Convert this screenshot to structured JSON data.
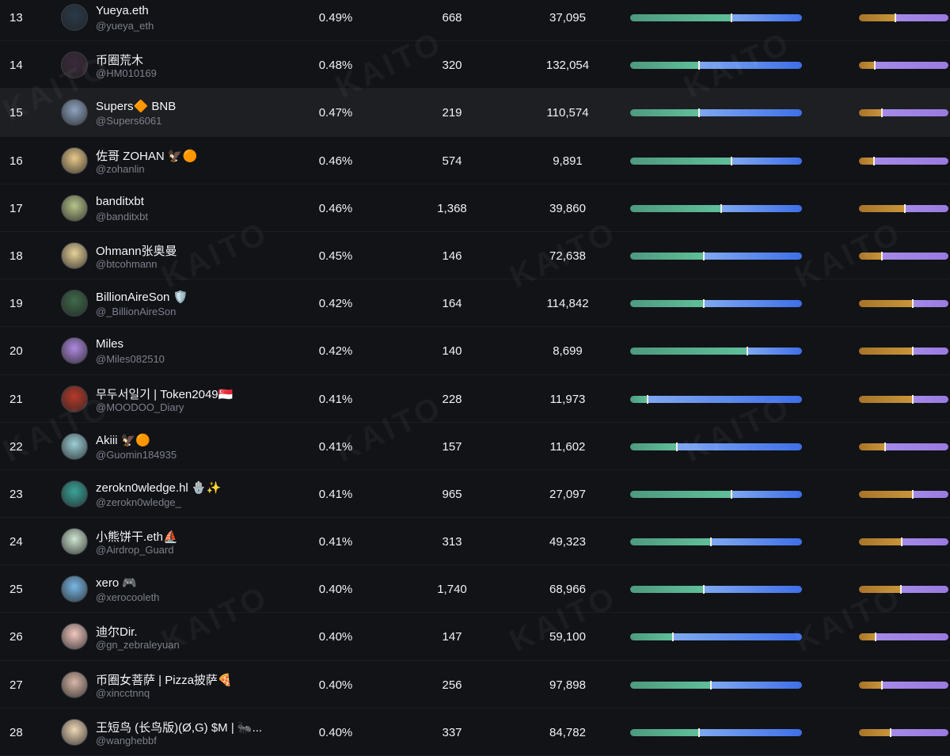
{
  "watermark": "KAITO",
  "colors": {
    "bg": "#111317",
    "highlight": "#1e1f23",
    "green": "#5fbf9a",
    "blue": "#3f6fe8",
    "gold": "#c8953a",
    "purple": "#9a7ae0"
  },
  "rows": [
    {
      "rank": "13",
      "name": "Yueya.eth",
      "handle": "@yueya_eth",
      "share": "0.49%",
      "count": "668",
      "followers": "37,095",
      "bar1": 0.59,
      "bar2": 0.41,
      "avatar": "#2a3a4a"
    },
    {
      "rank": "14",
      "name": "币圈荒木",
      "handle": "@HM010169",
      "share": "0.48%",
      "count": "320",
      "followers": "132,054",
      "bar1": 0.4,
      "bar2": 0.18,
      "avatar": "#3a2a3a"
    },
    {
      "rank": "15",
      "name": "Supers🔶 BNB",
      "handle": "@Supers6061",
      "share": "0.47%",
      "count": "219",
      "followers": "110,574",
      "bar1": 0.4,
      "bar2": 0.26,
      "avatar": "#8fa3c0",
      "highlight": true
    },
    {
      "rank": "16",
      "name": "佐哥 ZOHAN 🦅🟠",
      "handle": "@zohanlin",
      "share": "0.46%",
      "count": "574",
      "followers": "9,891",
      "bar1": 0.59,
      "bar2": 0.17,
      "avatar": "#e8c98a"
    },
    {
      "rank": "17",
      "name": "banditxbt",
      "handle": "@banditxbt",
      "share": "0.46%",
      "count": "1,368",
      "followers": "39,860",
      "bar1": 0.53,
      "bar2": 0.51,
      "avatar": "#b6c48a"
    },
    {
      "rank": "18",
      "name": "Ohmann张奥曼",
      "handle": "@btcohmann",
      "share": "0.45%",
      "count": "146",
      "followers": "72,638",
      "bar1": 0.43,
      "bar2": 0.26,
      "avatar": "#e7d29a"
    },
    {
      "rank": "19",
      "name": "BillionAireSon 🛡️",
      "handle": "@_BillionAireSon",
      "share": "0.42%",
      "count": "164",
      "followers": "114,842",
      "bar1": 0.43,
      "bar2": 0.6,
      "avatar": "#3f6a4a"
    },
    {
      "rank": "20",
      "name": "Miles",
      "handle": "@Miles082510",
      "share": "0.42%",
      "count": "140",
      "followers": "8,699",
      "bar1": 0.68,
      "bar2": 0.6,
      "avatar": "#b08ae0"
    },
    {
      "rank": "21",
      "name": "무두서일기 | Token2049🇸🇬",
      "handle": "@MOODOO_Diary",
      "share": "0.41%",
      "count": "228",
      "followers": "11,973",
      "bar1": 0.1,
      "bar2": 0.6,
      "avatar": "#b83a2a"
    },
    {
      "rank": "22",
      "name": "Akiii 🦅🟠",
      "handle": "@Guomin184935",
      "share": "0.41%",
      "count": "157",
      "followers": "11,602",
      "bar1": 0.27,
      "bar2": 0.29,
      "avatar": "#9ccfd6"
    },
    {
      "rank": "23",
      "name": "zerokn0wledge.hl 🪬✨",
      "handle": "@zerokn0wledge_",
      "share": "0.41%",
      "count": "965",
      "followers": "27,097",
      "bar1": 0.59,
      "bar2": 0.6,
      "avatar": "#3aa39a"
    },
    {
      "rank": "24",
      "name": "小熊饼干.eth⛵",
      "handle": "@Airdrop_Guard",
      "share": "0.41%",
      "count": "313",
      "followers": "49,323",
      "bar1": 0.47,
      "bar2": 0.48,
      "avatar": "#cfe6d2"
    },
    {
      "rank": "25",
      "name": "xero 🎮",
      "handle": "@xerocooleth",
      "share": "0.40%",
      "count": "1,740",
      "followers": "68,966",
      "bar1": 0.43,
      "bar2": 0.47,
      "avatar": "#7ab8e8"
    },
    {
      "rank": "26",
      "name": "迪尔Dir.",
      "handle": "@gn_zebraleyuan",
      "share": "0.40%",
      "count": "147",
      "followers": "59,100",
      "bar1": 0.25,
      "bar2": 0.19,
      "avatar": "#f2c8c0"
    },
    {
      "rank": "27",
      "name": "币圈女菩萨 | Pizza披萨🍕",
      "handle": "@xincctnnq",
      "share": "0.40%",
      "count": "256",
      "followers": "97,898",
      "bar1": 0.47,
      "bar2": 0.26,
      "avatar": "#d8b8a8"
    },
    {
      "rank": "28",
      "name": "王短鸟 (长鸟版)(Ø,G) $M | 🐜...",
      "handle": "@wanghebbf",
      "share": "0.40%",
      "count": "337",
      "followers": "84,782",
      "bar1": 0.4,
      "bar2": 0.35,
      "avatar": "#f0d8b8"
    }
  ]
}
